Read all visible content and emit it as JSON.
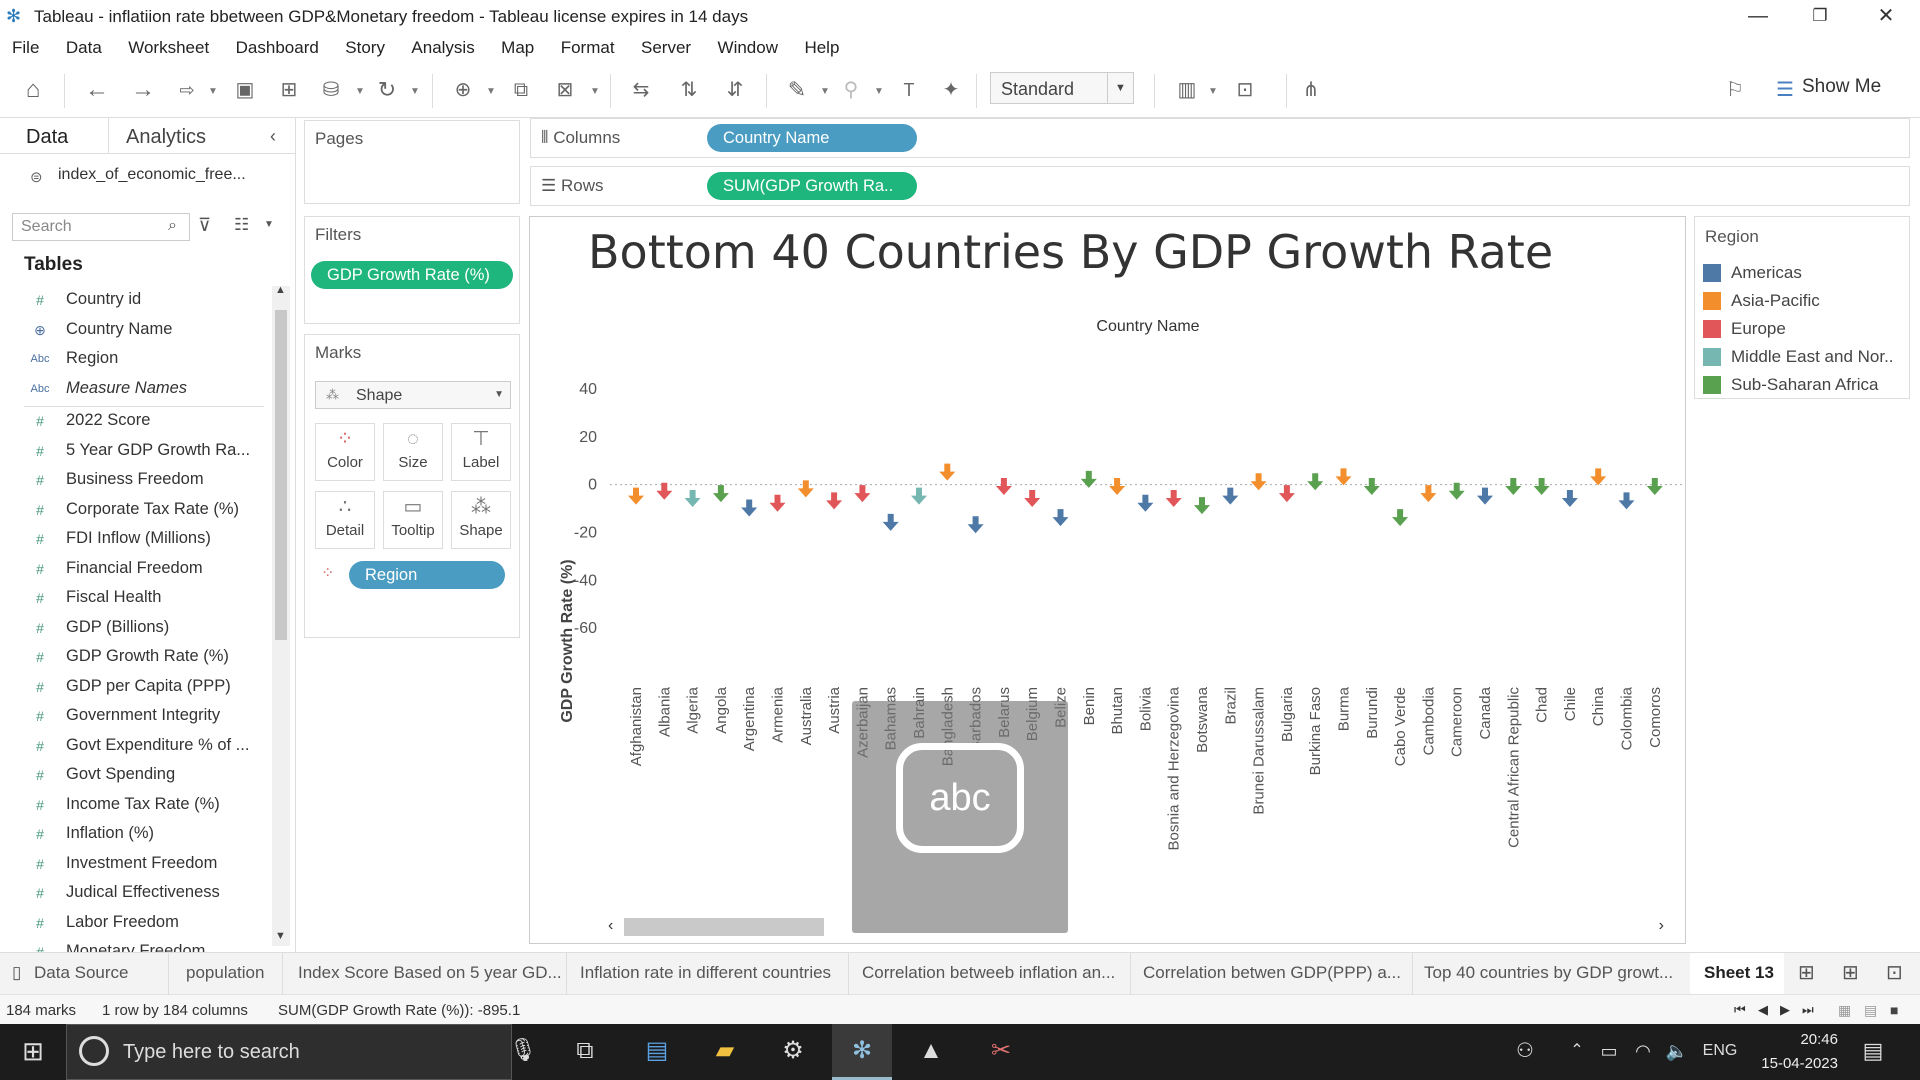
{
  "window": {
    "title": "Tableau - inflatiion rate bbetween GDP&Monetary freedom - Tableau license expires in 14 days"
  },
  "menu": [
    "File",
    "Data",
    "Worksheet",
    "Dashboard",
    "Story",
    "Analysis",
    "Map",
    "Format",
    "Server",
    "Window",
    "Help"
  ],
  "toolbar": {
    "standard_label": "Standard",
    "showme_label": "Show Me"
  },
  "left": {
    "tab_data": "Data",
    "tab_analytics": "Analytics",
    "datasource": "index_of_economic_free...",
    "search_placeholder": "Search",
    "tables_header": "Tables",
    "fields": [
      {
        "icon": "#",
        "label": "Country id"
      },
      {
        "icon": "globe",
        "label": "Country Name"
      },
      {
        "icon": "Abc",
        "label": "Region"
      },
      {
        "icon": "Abc",
        "label": "Measure Names"
      },
      {
        "icon": "#",
        "label": "2022 Score"
      },
      {
        "icon": "#",
        "label": "5 Year GDP Growth Ra..."
      },
      {
        "icon": "#",
        "label": "Business Freedom"
      },
      {
        "icon": "#",
        "label": "Corporate Tax Rate (%)"
      },
      {
        "icon": "#",
        "label": "FDI Inflow (Millions)"
      },
      {
        "icon": "#",
        "label": "Financial Freedom"
      },
      {
        "icon": "#",
        "label": "Fiscal Health"
      },
      {
        "icon": "#",
        "label": "GDP (Billions)"
      },
      {
        "icon": "#",
        "label": "GDP Growth Rate (%)"
      },
      {
        "icon": "#",
        "label": "GDP per Capita (PPP)"
      },
      {
        "icon": "#",
        "label": "Government Integrity"
      },
      {
        "icon": "#",
        "label": "Govt Expenditure % of ..."
      },
      {
        "icon": "#",
        "label": "Govt Spending"
      },
      {
        "icon": "#",
        "label": "Income Tax Rate (%)"
      },
      {
        "icon": "#",
        "label": "Inflation (%)"
      },
      {
        "icon": "#",
        "label": "Investment Freedom"
      },
      {
        "icon": "#",
        "label": "Judical Effectiveness"
      },
      {
        "icon": "#",
        "label": "Labor Freedom"
      },
      {
        "icon": "#",
        "label": "Monetary Freedom"
      }
    ]
  },
  "pages": {
    "header": "Pages"
  },
  "filters": {
    "header": "Filters",
    "pill": "GDP Growth Rate (%)"
  },
  "marks": {
    "header": "Marks",
    "type": "Shape",
    "buttons": [
      "Color",
      "Size",
      "Label",
      "Detail",
      "Tooltip",
      "Shape"
    ],
    "region_pill": "Region"
  },
  "shelves": {
    "columns_label": "Columns",
    "columns_pill": "Country Name",
    "rows_label": "Rows",
    "rows_pill": "SUM(GDP Growth Ra.."
  },
  "legend": {
    "header": "Region",
    "items": [
      {
        "label": "Americas",
        "color": "#4e79a7"
      },
      {
        "label": "Asia-Pacific",
        "color": "#f28e2b"
      },
      {
        "label": "Europe",
        "color": "#e15759"
      },
      {
        "label": "Middle East and Nor..",
        "color": "#76b7b2"
      },
      {
        "label": "Sub-Saharan Africa",
        "color": "#59a14f"
      }
    ]
  },
  "chart_data": {
    "type": "scatter",
    "title": "Bottom 40 Countries By GDP Growth Rate",
    "subtitle": "Country Name",
    "ylabel": "GDP Growth Rate (%)",
    "ylim": [
      -70,
      45
    ],
    "yticks": [
      40,
      20,
      0,
      -20,
      -40,
      -60
    ],
    "marker": "arrow-down",
    "categories": [
      "Afghanistan",
      "Albania",
      "Algeria",
      "Angola",
      "Argentina",
      "Armenia",
      "Australia",
      "Austria",
      "Azerbaijan",
      "Bahamas",
      "Bahrain",
      "Bangladesh",
      "Barbados",
      "Belarus",
      "Belgium",
      "Belize",
      "Benin",
      "Bhutan",
      "Bolivia",
      "Bosnia and Herzegovina",
      "Botswana",
      "Brazil",
      "Brunei Darussalam",
      "Bulgaria",
      "Burkina Faso",
      "Burma",
      "Burundi",
      "Cabo Verde",
      "Cambodia",
      "Cameroon",
      "Canada",
      "Central African Republic",
      "Chad",
      "Chile",
      "China",
      "Colombia",
      "Comoros"
    ],
    "regions": [
      "Asia-Pacific",
      "Europe",
      "Middle East and Nor..",
      "Sub-Saharan Africa",
      "Americas",
      "Europe",
      "Asia-Pacific",
      "Europe",
      "Europe",
      "Americas",
      "Middle East and Nor..",
      "Asia-Pacific",
      "Americas",
      "Europe",
      "Europe",
      "Americas",
      "Sub-Saharan Africa",
      "Asia-Pacific",
      "Americas",
      "Europe",
      "Sub-Saharan Africa",
      "Americas",
      "Asia-Pacific",
      "Europe",
      "Sub-Saharan Africa",
      "Asia-Pacific",
      "Sub-Saharan Africa",
      "Sub-Saharan Africa",
      "Asia-Pacific",
      "Sub-Saharan Africa",
      "Americas",
      "Sub-Saharan Africa",
      "Sub-Saharan Africa",
      "Americas",
      "Asia-Pacific",
      "Americas",
      "Sub-Saharan Africa"
    ],
    "values": [
      -5,
      -3,
      -6,
      -4,
      -10,
      -8,
      -2,
      -7,
      -4,
      -16,
      -5,
      5,
      -17,
      -1,
      -6,
      -14,
      2,
      -1,
      -8,
      -6,
      -9,
      -5,
      1,
      -4,
      1,
      3,
      -1,
      -14,
      -4,
      -3,
      -5,
      -1,
      -1,
      -6,
      3,
      -7,
      -1
    ]
  },
  "sheet_tabs": [
    "Data Source",
    "population",
    "Index Score Based on 5 year GD...",
    "Inflation rate in different countries",
    "Correlation betweeb inflation an...",
    "Correlation betwen GDP(PPP) a...",
    "Top 40 countries by GDP growt...",
    "Sheet 13"
  ],
  "status": {
    "marks": "184 marks",
    "dims": "1 row by 184 columns",
    "sum": "SUM(GDP Growth Rate (%)): -895.1"
  },
  "taskbar": {
    "search_placeholder": "Type here to search",
    "lang": "ENG",
    "time": "20:46",
    "date": "15-04-2023"
  }
}
